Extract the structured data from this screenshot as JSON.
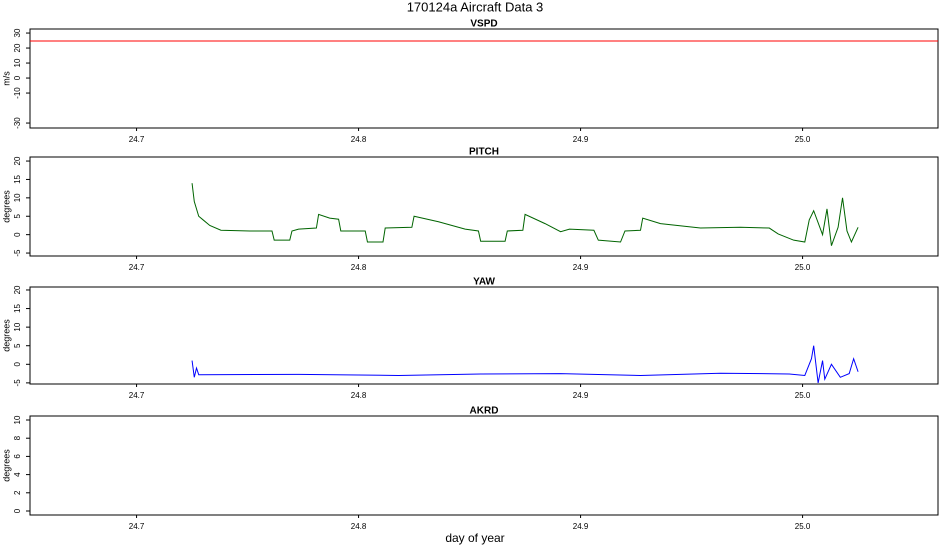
{
  "title": "170124a   Aircraft Data 3",
  "xlabel": "day of year",
  "chart_data": [
    {
      "type": "line",
      "title": "VSPD",
      "ylabel": "m/s",
      "xlim": [
        24.652,
        25.061
      ],
      "xticks": [
        24.7,
        24.8,
        24.9,
        {
          "value": 25,
          "label": "25.0"
        }
      ],
      "ylim": [
        -33.3,
        32.7
      ],
      "yticks": [
        -30,
        -10,
        0,
        10,
        20,
        30
      ],
      "x": [
        24.652,
        25.061
      ],
      "series": [
        {
          "color": "#ff0000",
          "values": [
            24.7,
            24.7
          ]
        }
      ]
    },
    {
      "type": "line",
      "title": "PITCH",
      "ylabel": "degrees",
      "xlim": [
        24.652,
        25.061
      ],
      "xticks": [
        24.7,
        24.8,
        24.9,
        {
          "value": 25,
          "label": "25.0"
        }
      ],
      "ylim": [
        -5.8,
        21.1
      ],
      "yticks": [
        -5,
        0,
        5,
        10,
        15,
        20
      ],
      "x": [
        24.725,
        24.726,
        24.728,
        24.73,
        24.733,
        24.738,
        24.751,
        24.761,
        24.762,
        24.769,
        24.77,
        24.773,
        24.781,
        24.782,
        24.787,
        24.791,
        24.792,
        24.803,
        24.804,
        24.811,
        24.812,
        24.824,
        24.825,
        24.836,
        24.848,
        24.854,
        24.855,
        24.866,
        24.867,
        24.874,
        24.875,
        24.884,
        24.891,
        24.895,
        24.906,
        24.908,
        24.918,
        24.92,
        24.927,
        24.928,
        24.936,
        24.954,
        24.972,
        24.985,
        24.989,
        24.996,
        25.001,
        25.003,
        25.005,
        25.009,
        25.011,
        25.013,
        25.016,
        25.018,
        25.02,
        25.022,
        25.025
      ],
      "series": [
        {
          "color": "#006400",
          "values": [
            14,
            9,
            5,
            4,
            2.5,
            1.2,
            1.0,
            1.0,
            -1.5,
            -1.5,
            1.0,
            1.5,
            1.8,
            5.5,
            4.5,
            4.2,
            1.0,
            1.0,
            -2.0,
            -2.0,
            1.8,
            2.0,
            5.0,
            3.5,
            1.5,
            1.0,
            -1.8,
            -1.8,
            1.0,
            1.2,
            5.5,
            3.0,
            0.8,
            1.5,
            1.2,
            -1.5,
            -2.0,
            1.0,
            1.2,
            4.5,
            3.0,
            1.8,
            2.0,
            1.8,
            0.2,
            -1.5,
            -2.0,
            4.0,
            6.5,
            0.0,
            7.0,
            -3.0,
            2.0,
            10.0,
            1.0,
            -2.0,
            2.0
          ]
        }
      ]
    },
    {
      "type": "line",
      "title": "YAW",
      "ylabel": "degrees",
      "xlim": [
        24.652,
        25.061
      ],
      "xticks": [
        24.7,
        24.8,
        24.9,
        {
          "value": 25,
          "label": "25.0"
        }
      ],
      "ylim": [
        -5.3,
        20.8
      ],
      "yticks": [
        -5,
        0,
        5,
        10,
        15,
        20
      ],
      "x": [
        24.725,
        24.726,
        24.727,
        24.728,
        24.773,
        24.818,
        24.855,
        24.891,
        24.927,
        24.963,
        24.994,
        25.001,
        25.004,
        25.005,
        25.007,
        25.009,
        25.01,
        25.013,
        25.017,
        25.021,
        25.023,
        25.025
      ],
      "series": [
        {
          "color": "#0000ff",
          "values": [
            1,
            -3.5,
            -1,
            -2.8,
            -2.7,
            -3.0,
            -2.6,
            -2.5,
            -3.0,
            -2.4,
            -2.6,
            -3.0,
            1.5,
            5.0,
            -5,
            1,
            -4,
            0,
            -3.5,
            -2.5,
            1.5,
            -2.0
          ]
        }
      ]
    },
    {
      "type": "line",
      "title": "AKRD",
      "ylabel": "degrees",
      "xlim": [
        24.652,
        25.061
      ],
      "xticks": [
        24.7,
        24.8,
        24.9,
        {
          "value": 25,
          "label": "25.0"
        }
      ],
      "ylim": [
        -0.44,
        10.44
      ],
      "yticks": [
        0,
        2,
        4,
        6,
        8,
        10
      ],
      "x": [],
      "series": []
    }
  ]
}
